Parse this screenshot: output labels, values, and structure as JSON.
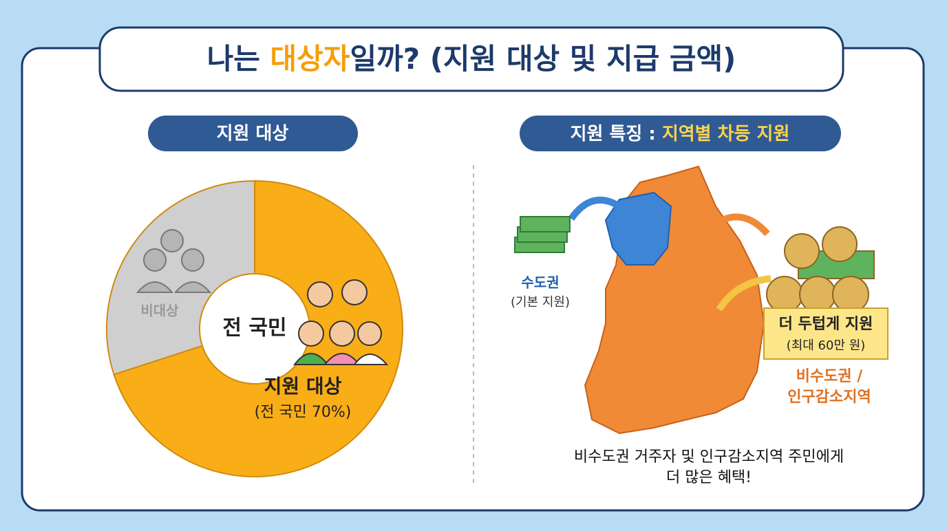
{
  "header": {
    "title_parts": [
      "나는 ",
      "대상자",
      "일까? (지원 대상 및 지급 금액)"
    ]
  },
  "left": {
    "section_title": "지원 대상"
  },
  "chart_data": {
    "type": "donut",
    "center_label": "전 국민",
    "categories": [
      "지원 대상",
      "비대상"
    ],
    "values": [
      70,
      30
    ],
    "value_labels": [
      "(전 국민 70%)",
      null
    ],
    "colors": [
      "#f9ad17",
      "#cfcfcf"
    ]
  },
  "right": {
    "section_title": "지원 특징 : ",
    "section_highlight": "지역별 차등 지원",
    "capital_label": "수도권",
    "capital_note": "(기본 지원)",
    "banner_title": "더 두텁게 지원",
    "banner_note": "(최대 60만 원)",
    "region_label_1": "비수도권 /",
    "region_label_2": "인구감소지역",
    "footer_1": "비수도권 거주자 및 인구감소지역 주민에게",
    "footer_2": "더 많은 혜택!"
  }
}
